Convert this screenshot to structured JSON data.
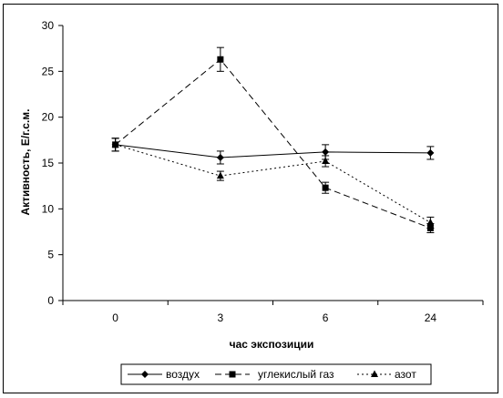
{
  "chart_data": {
    "type": "line",
    "title": "",
    "xlabel": "час экспозиции",
    "ylabel": "Активность, Е/г.с.м.",
    "categories": [
      "0",
      "3",
      "6",
      "24"
    ],
    "ylim": [
      0,
      30
    ],
    "yticks": [
      0,
      5,
      10,
      15,
      20,
      25,
      30
    ],
    "grid": false,
    "legend_position": "bottom",
    "series": [
      {
        "name": "воздух",
        "marker": "diamond",
        "line_style": "solid",
        "values": [
          17.0,
          15.6,
          16.2,
          16.1
        ],
        "errors": [
          0.7,
          0.7,
          0.8,
          0.7
        ]
      },
      {
        "name": "углекислый газ",
        "marker": "square",
        "line_style": "dashed",
        "values": [
          17.0,
          26.3,
          12.3,
          7.9
        ],
        "errors": [
          0.7,
          1.3,
          0.6,
          0.5
        ]
      },
      {
        "name": "азот",
        "marker": "triangle",
        "line_style": "dotted",
        "values": [
          17.0,
          13.6,
          15.2,
          8.5
        ],
        "errors": [
          0.7,
          0.5,
          0.6,
          0.6
        ]
      }
    ]
  }
}
